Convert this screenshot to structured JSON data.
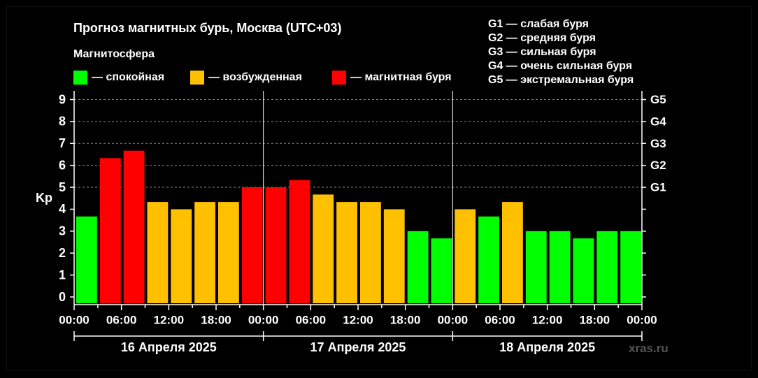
{
  "title": "Прогноз магнитных бурь, Москва (UTC+03)",
  "magnetosphere": {
    "title": "Магнитосфера",
    "items": [
      {
        "label": "— спокойная",
        "color": "#00ff00"
      },
      {
        "label": "— возбужденная",
        "color": "#ffc000"
      },
      {
        "label": "— магнитная буря",
        "color": "#ff0000"
      }
    ]
  },
  "storm_scale": [
    "G1 — слабая буря",
    "G2 — средняя буря",
    "G3 — сильная буря",
    "G4 — очень сильная буря",
    "G5 — экстремальная буря"
  ],
  "watermark": "xras.ru",
  "chart_data": {
    "type": "bar",
    "ylabel": "Kp",
    "ylim": [
      0,
      9
    ],
    "yticks": [
      "0",
      "1",
      "2",
      "3",
      "4",
      "5",
      "6",
      "7",
      "8",
      "9"
    ],
    "right_ticks": [
      {
        "label": "G1",
        "value": 5
      },
      {
        "label": "G2",
        "value": 6
      },
      {
        "label": "G3",
        "value": 7
      },
      {
        "label": "G4",
        "value": 8
      },
      {
        "label": "G5",
        "value": 9
      }
    ],
    "xticks": [
      "00:00",
      "06:00",
      "12:00",
      "18:00",
      "00:00",
      "06:00",
      "12:00",
      "18:00",
      "00:00",
      "06:00",
      "12:00",
      "18:00",
      "00:00"
    ],
    "days": [
      "16 Апреля 2025",
      "17 Апреля 2025",
      "18 Апреля 2025"
    ],
    "values": [
      3.67,
      6.33,
      6.67,
      4.33,
      4.0,
      4.33,
      4.33,
      5.0,
      5.0,
      5.33,
      4.67,
      4.33,
      4.33,
      4.0,
      3.0,
      2.67,
      4.0,
      3.67,
      4.33,
      3.0,
      3.0,
      2.67,
      3.0,
      3.0
    ],
    "colors": {
      "quiet": "#00ff00",
      "active": "#ffc000",
      "storm": "#ff0000"
    },
    "grid": "dashed at G levels"
  }
}
